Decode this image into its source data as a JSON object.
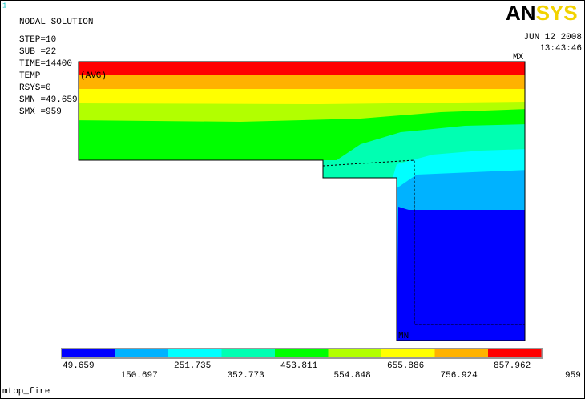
{
  "window": {
    "id": "1",
    "title": "NODAL SOLUTION",
    "footer": "mtop_fire"
  },
  "info": [
    "STEP=10",
    "SUB =22",
    "TIME=14400",
    "TEMP",
    "(AVG)",
    "RSYS=0",
    "SMN =49.659",
    "SMX =959"
  ],
  "logo": {
    "left": "AN",
    "right": "SYS"
  },
  "stamp": {
    "date": "JUN 12 2008",
    "time": "13:43:46"
  },
  "markers": {
    "max": "MX",
    "min": "MN"
  },
  "legend": {
    "levels": [
      49.659,
      150.697,
      251.735,
      352.773,
      453.811,
      554.848,
      655.886,
      756.924,
      857.962,
      959
    ],
    "colors": [
      "#0000ff",
      "#00b2ff",
      "#00ffff",
      "#00ffb2",
      "#00ff00",
      "#b2ff00",
      "#ffff00",
      "#ffb200",
      "#ff0000"
    ]
  }
}
